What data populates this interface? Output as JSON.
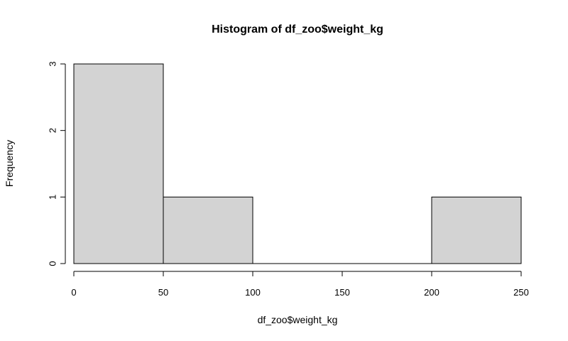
{
  "chart_data": {
    "type": "bar",
    "title": "Histogram of df_zoo$weight_kg",
    "xlabel": "df_zoo$weight_kg",
    "ylabel": "Frequency",
    "bins": [
      {
        "start": 0,
        "end": 50,
        "count": 3
      },
      {
        "start": 50,
        "end": 100,
        "count": 1
      },
      {
        "start": 100,
        "end": 150,
        "count": 0
      },
      {
        "start": 150,
        "end": 200,
        "count": 0
      },
      {
        "start": 200,
        "end": 250,
        "count": 1
      }
    ],
    "xlim": [
      0,
      250
    ],
    "ylim": [
      0,
      3
    ],
    "x_ticks": [
      0,
      50,
      100,
      150,
      200,
      250
    ],
    "y_ticks": [
      0,
      1,
      2,
      3
    ],
    "grid": false,
    "bar_fill": "#d3d3d3",
    "bar_stroke": "#000000"
  }
}
